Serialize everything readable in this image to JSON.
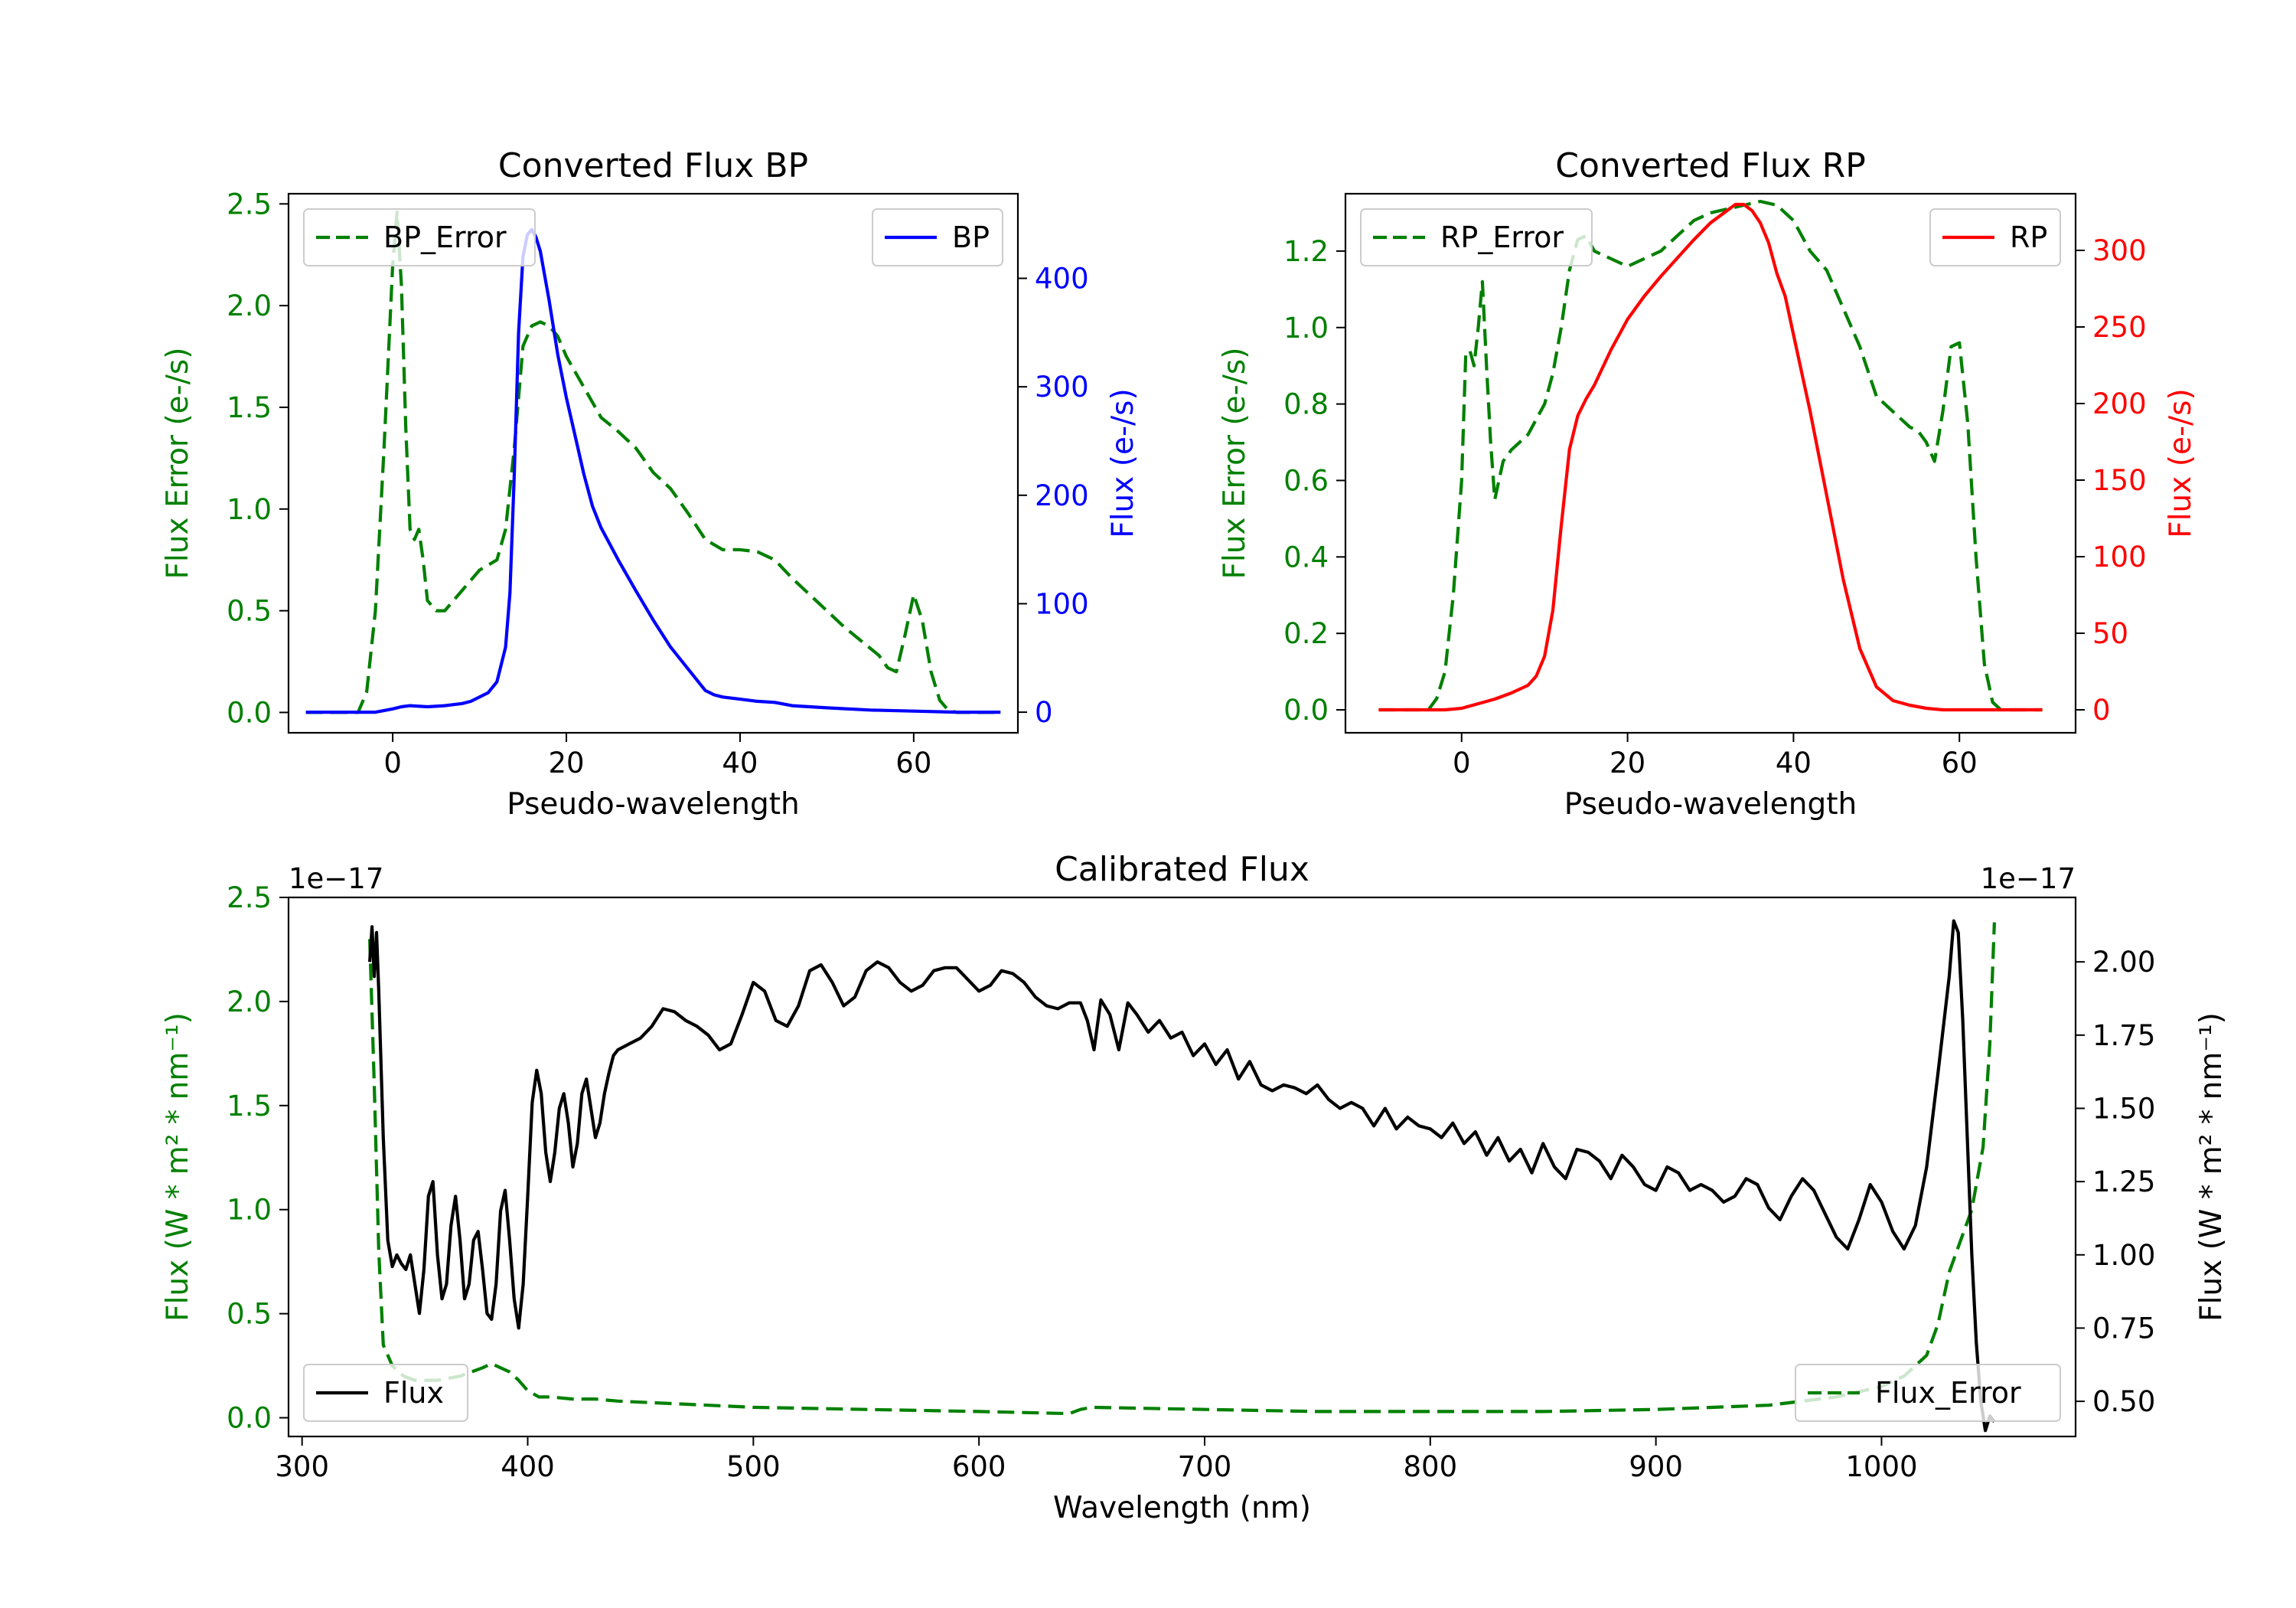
{
  "figure": {
    "background": "#ffffff"
  },
  "chart_data": [
    {
      "id": "bp",
      "type": "line",
      "title": "Converted Flux BP",
      "xlabel": "Pseudo-wavelength",
      "ylabel_left": "Flux Error (e-/s)",
      "ylabel_right": "Flux (e-/s)",
      "xlim": [
        -12,
        72
      ],
      "ylim_left": [
        -0.1,
        2.55
      ],
      "ylim_right": [
        -19,
        478
      ],
      "xticks": [
        0,
        20,
        40,
        60
      ],
      "yticks_left": [
        0.0,
        0.5,
        1.0,
        1.5,
        2.0,
        2.5
      ],
      "yticks_left_labels": [
        "0.0",
        "0.5",
        "1.0",
        "1.5",
        "2.0",
        "2.5"
      ],
      "yticks_right": [
        0,
        100,
        200,
        300,
        400
      ],
      "yticks_right_labels": [
        "0",
        "100",
        "200",
        "300",
        "400"
      ],
      "left_color": "#008000",
      "right_color": "#0000ff",
      "series": [
        {
          "name": "BP_Error",
          "axis": "left",
          "style": "dashed",
          "color": "#008000",
          "x": [
            -10,
            -4,
            -3,
            -2,
            -1,
            0,
            0.5,
            1,
            1.5,
            2,
            2.5,
            3,
            3.5,
            4,
            5,
            6,
            8,
            10,
            12,
            13,
            14,
            15,
            16,
            17,
            18,
            19,
            20,
            22,
            24,
            26,
            28,
            30,
            32,
            34,
            36,
            38,
            40,
            42,
            44,
            46,
            48,
            50,
            52,
            54,
            56,
            57,
            58,
            59,
            60,
            61,
            62,
            63,
            64,
            65,
            67,
            70
          ],
          "y": [
            0.0,
            0.0,
            0.1,
            0.5,
            1.3,
            2.2,
            2.46,
            2.1,
            1.4,
            0.9,
            0.85,
            0.9,
            0.75,
            0.55,
            0.5,
            0.5,
            0.6,
            0.7,
            0.75,
            0.9,
            1.3,
            1.8,
            1.9,
            1.92,
            1.9,
            1.85,
            1.75,
            1.6,
            1.45,
            1.38,
            1.3,
            1.18,
            1.1,
            0.98,
            0.85,
            0.8,
            0.8,
            0.79,
            0.75,
            0.66,
            0.58,
            0.5,
            0.42,
            0.35,
            0.28,
            0.22,
            0.2,
            0.38,
            0.58,
            0.45,
            0.2,
            0.06,
            0.01,
            0.0,
            0.0,
            0.0
          ]
        },
        {
          "name": "BP",
          "axis": "right",
          "style": "solid",
          "color": "#0000ff",
          "x": [
            -10,
            -2,
            0,
            1,
            2,
            4,
            6,
            8,
            9,
            10,
            11,
            12,
            13,
            13.5,
            14,
            14.5,
            15,
            15.5,
            16,
            16.5,
            17,
            18,
            19,
            20,
            21,
            22,
            23,
            24,
            26,
            28,
            30,
            32,
            34,
            35,
            36,
            37,
            38,
            40,
            42,
            44,
            46,
            50,
            55,
            60,
            65,
            70
          ],
          "y": [
            0,
            0,
            3,
            5,
            6,
            5,
            6,
            8,
            10,
            14,
            18,
            28,
            60,
            110,
            220,
            350,
            420,
            440,
            445,
            438,
            425,
            380,
            330,
            290,
            255,
            220,
            190,
            170,
            140,
            112,
            85,
            60,
            40,
            30,
            20,
            16,
            14,
            12,
            10,
            9,
            6,
            4,
            2,
            1,
            0,
            0
          ]
        }
      ],
      "legend": [
        {
          "label": "BP_Error",
          "position": "upper-left"
        },
        {
          "label": "BP",
          "position": "upper-right"
        }
      ]
    },
    {
      "id": "rp",
      "type": "line",
      "title": "Converted Flux RP",
      "xlabel": "Pseudo-wavelength",
      "ylabel_left": "Flux Error (e-/s)",
      "ylabel_right": "Flux (e-/s)",
      "xlim": [
        -14,
        74
      ],
      "ylim_left": [
        -0.06,
        1.35
      ],
      "ylim_right": [
        -15,
        337
      ],
      "xticks": [
        0,
        20,
        40,
        60
      ],
      "yticks_left": [
        0.0,
        0.2,
        0.4,
        0.6,
        0.8,
        1.0,
        1.2
      ],
      "yticks_left_labels": [
        "0.0",
        "0.2",
        "0.4",
        "0.6",
        "0.8",
        "1.0",
        "1.2"
      ],
      "yticks_right": [
        0,
        50,
        100,
        150,
        200,
        250,
        300
      ],
      "yticks_right_labels": [
        "0",
        "50",
        "100",
        "150",
        "200",
        "250",
        "300"
      ],
      "left_color": "#008000",
      "right_color": "#ff0000",
      "series": [
        {
          "name": "RP_Error",
          "axis": "left",
          "style": "dashed",
          "color": "#008000",
          "x": [
            -10,
            -4,
            -3,
            -2,
            -1,
            0,
            0.5,
            1,
            1.5,
            2,
            2.5,
            3,
            3.5,
            4,
            5,
            6,
            8,
            10,
            11,
            12,
            13,
            14,
            15,
            16,
            18,
            20,
            22,
            24,
            26,
            28,
            30,
            32,
            34,
            36,
            38,
            40,
            42,
            44,
            46,
            48,
            50,
            52,
            54,
            55,
            56,
            57,
            58,
            59,
            60,
            61,
            62,
            63,
            64,
            65,
            67,
            70
          ],
          "y": [
            0.0,
            0.0,
            0.03,
            0.1,
            0.3,
            0.6,
            0.93,
            0.94,
            0.9,
            1.0,
            1.12,
            0.9,
            0.7,
            0.55,
            0.65,
            0.68,
            0.72,
            0.8,
            0.88,
            1.0,
            1.15,
            1.23,
            1.24,
            1.2,
            1.18,
            1.16,
            1.18,
            1.2,
            1.24,
            1.28,
            1.3,
            1.31,
            1.32,
            1.33,
            1.32,
            1.28,
            1.2,
            1.15,
            1.05,
            0.95,
            0.82,
            0.78,
            0.74,
            0.73,
            0.7,
            0.65,
            0.78,
            0.95,
            0.96,
            0.75,
            0.4,
            0.12,
            0.02,
            0.0,
            0.0,
            0.0
          ]
        },
        {
          "name": "RP",
          "axis": "right",
          "style": "solid",
          "color": "#ff0000",
          "x": [
            -10,
            -4,
            -2,
            0,
            2,
            4,
            6,
            8,
            9,
            10,
            11,
            12,
            13,
            14,
            15,
            16,
            18,
            20,
            22,
            24,
            26,
            28,
            30,
            32,
            33,
            34,
            35,
            36,
            37,
            38,
            39,
            40,
            42,
            44,
            46,
            48,
            50,
            52,
            54,
            56,
            58,
            60,
            62,
            64,
            66,
            70
          ],
          "y": [
            0,
            0,
            0,
            1,
            4,
            7,
            11,
            16,
            22,
            35,
            65,
            120,
            170,
            192,
            203,
            212,
            235,
            255,
            270,
            283,
            295,
            307,
            318,
            326,
            330,
            330,
            326,
            318,
            305,
            285,
            270,
            245,
            195,
            140,
            85,
            40,
            15,
            6,
            3,
            1,
            0,
            0,
            0,
            0,
            0,
            0
          ]
        }
      ],
      "legend": [
        {
          "label": "RP_Error",
          "position": "upper-left"
        },
        {
          "label": "RP",
          "position": "upper-right"
        }
      ]
    },
    {
      "id": "cal",
      "type": "line",
      "title": "Calibrated Flux",
      "xlabel": "Wavelength (nm)",
      "ylabel_left": "Flux (W * m² * nm⁻¹)",
      "ylabel_right": "Flux (W * m² * nm⁻¹)",
      "offset_left": "1e−17",
      "offset_right": "1e−17",
      "xlim": [
        294,
        1086
      ],
      "ylim_left": [
        -0.09,
        2.5
      ],
      "ylim_right": [
        0.38,
        2.22
      ],
      "xticks": [
        300,
        400,
        500,
        600,
        700,
        800,
        900,
        1000
      ],
      "yticks_left": [
        0.0,
        0.5,
        1.0,
        1.5,
        2.0,
        2.5
      ],
      "yticks_left_labels": [
        "0.0",
        "0.5",
        "1.0",
        "1.5",
        "2.0",
        "2.5"
      ],
      "yticks_right": [
        0.5,
        0.75,
        1.0,
        1.25,
        1.5,
        1.75,
        2.0
      ],
      "yticks_right_labels": [
        "0.50",
        "0.75",
        "1.00",
        "1.25",
        "1.50",
        "1.75",
        "2.00"
      ],
      "left_color": "#008000",
      "right_color": "#000000",
      "series": [
        {
          "name": "Flux_Error",
          "axis": "left",
          "style": "dashed",
          "color": "#008000",
          "x": [
            330,
            332,
            334,
            336,
            340,
            345,
            350,
            360,
            370,
            380,
            384,
            388,
            392,
            396,
            400,
            405,
            410,
            420,
            430,
            440,
            460,
            480,
            500,
            550,
            600,
            640,
            645,
            650,
            700,
            750,
            800,
            850,
            900,
            950,
            980,
            1000,
            1010,
            1020,
            1025,
            1030,
            1035,
            1040,
            1045,
            1048,
            1050
          ],
          "y": [
            2.3,
            1.6,
            0.8,
            0.35,
            0.25,
            0.2,
            0.18,
            0.18,
            0.2,
            0.24,
            0.26,
            0.24,
            0.22,
            0.18,
            0.13,
            0.1,
            0.1,
            0.09,
            0.09,
            0.08,
            0.07,
            0.06,
            0.05,
            0.04,
            0.03,
            0.02,
            0.04,
            0.05,
            0.04,
            0.03,
            0.03,
            0.03,
            0.04,
            0.06,
            0.1,
            0.15,
            0.2,
            0.3,
            0.45,
            0.7,
            0.85,
            1.0,
            1.3,
            1.8,
            2.38
          ]
        },
        {
          "name": "Flux",
          "axis": "right",
          "style": "solid",
          "color": "#000000",
          "x": [
            330,
            331,
            332,
            333,
            334,
            336,
            338,
            340,
            342,
            344,
            346,
            348,
            350,
            352,
            354,
            356,
            358,
            360,
            362,
            364,
            366,
            368,
            370,
            372,
            374,
            376,
            378,
            380,
            382,
            384,
            386,
            388,
            390,
            392,
            394,
            396,
            398,
            400,
            402,
            404,
            406,
            408,
            410,
            412,
            414,
            416,
            418,
            420,
            422,
            424,
            426,
            428,
            430,
            432,
            434,
            436,
            438,
            440,
            445,
            450,
            455,
            460,
            465,
            470,
            475,
            480,
            485,
            490,
            495,
            500,
            505,
            510,
            515,
            520,
            525,
            530,
            535,
            540,
            545,
            550,
            555,
            560,
            565,
            570,
            575,
            580,
            585,
            590,
            595,
            600,
            605,
            610,
            615,
            620,
            625,
            630,
            635,
            640,
            645,
            648,
            651,
            654,
            658,
            662,
            666,
            670,
            675,
            680,
            685,
            690,
            695,
            700,
            705,
            710,
            715,
            720,
            725,
            730,
            735,
            740,
            745,
            750,
            755,
            760,
            765,
            770,
            775,
            780,
            785,
            790,
            795,
            800,
            805,
            810,
            815,
            820,
            825,
            830,
            835,
            840,
            845,
            850,
            855,
            860,
            865,
            870,
            875,
            880,
            885,
            890,
            895,
            900,
            905,
            910,
            915,
            920,
            925,
            930,
            935,
            940,
            945,
            950,
            955,
            960,
            965,
            970,
            975,
            980,
            985,
            990,
            995,
            1000,
            1005,
            1010,
            1015,
            1020,
            1025,
            1030,
            1032,
            1034,
            1036,
            1038,
            1040,
            1042,
            1044,
            1046,
            1048,
            1050
          ],
          "y": [
            2.0,
            2.12,
            1.95,
            2.1,
            1.9,
            1.4,
            1.05,
            0.96,
            1.0,
            0.97,
            0.95,
            1.0,
            0.9,
            0.8,
            0.95,
            1.2,
            1.25,
            1.0,
            0.85,
            0.9,
            1.1,
            1.2,
            1.05,
            0.85,
            0.9,
            1.05,
            1.08,
            0.95,
            0.8,
            0.78,
            0.9,
            1.15,
            1.22,
            1.05,
            0.85,
            0.75,
            0.9,
            1.2,
            1.52,
            1.63,
            1.55,
            1.35,
            1.25,
            1.35,
            1.5,
            1.55,
            1.45,
            1.3,
            1.38,
            1.55,
            1.6,
            1.5,
            1.4,
            1.45,
            1.55,
            1.62,
            1.68,
            1.7,
            1.72,
            1.74,
            1.78,
            1.84,
            1.83,
            1.8,
            1.78,
            1.75,
            1.7,
            1.72,
            1.82,
            1.93,
            1.9,
            1.8,
            1.78,
            1.85,
            1.97,
            1.99,
            1.93,
            1.85,
            1.88,
            1.97,
            2.0,
            1.98,
            1.93,
            1.9,
            1.92,
            1.97,
            1.98,
            1.98,
            1.94,
            1.9,
            1.92,
            1.97,
            1.96,
            1.93,
            1.88,
            1.85,
            1.84,
            1.86,
            1.86,
            1.8,
            1.7,
            1.87,
            1.82,
            1.7,
            1.86,
            1.82,
            1.76,
            1.8,
            1.74,
            1.76,
            1.68,
            1.72,
            1.65,
            1.7,
            1.6,
            1.66,
            1.58,
            1.56,
            1.58,
            1.57,
            1.55,
            1.58,
            1.53,
            1.5,
            1.52,
            1.5,
            1.44,
            1.5,
            1.43,
            1.47,
            1.44,
            1.43,
            1.4,
            1.45,
            1.38,
            1.42,
            1.34,
            1.4,
            1.32,
            1.36,
            1.28,
            1.38,
            1.3,
            1.26,
            1.36,
            1.35,
            1.32,
            1.26,
            1.34,
            1.3,
            1.24,
            1.22,
            1.3,
            1.28,
            1.22,
            1.24,
            1.22,
            1.18,
            1.2,
            1.26,
            1.24,
            1.16,
            1.12,
            1.2,
            1.26,
            1.22,
            1.14,
            1.06,
            1.02,
            1.12,
            1.24,
            1.18,
            1.08,
            1.02,
            1.1,
            1.3,
            1.62,
            1.95,
            2.14,
            2.1,
            1.8,
            1.4,
            1.0,
            0.7,
            0.5,
            0.4,
            0.45,
            0.43
          ]
        }
      ],
      "legend": [
        {
          "label": "Flux",
          "position": "lower-left"
        },
        {
          "label": "Flux_Error",
          "position": "lower-right"
        }
      ]
    }
  ]
}
